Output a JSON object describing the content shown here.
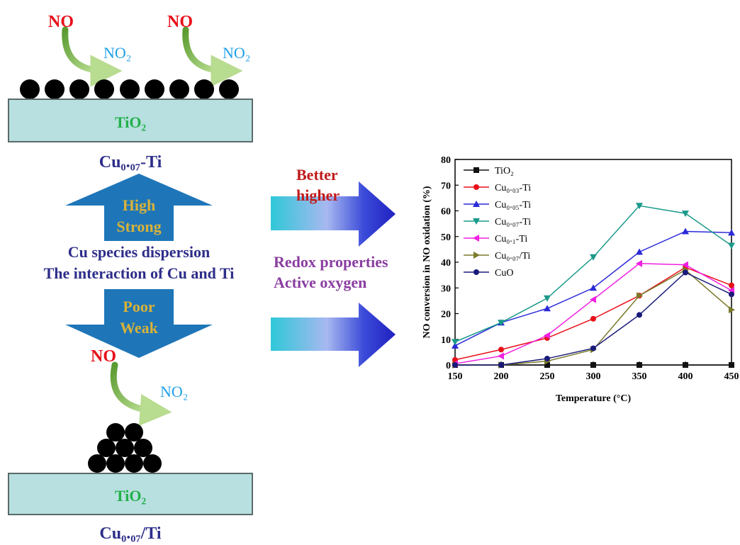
{
  "colors": {
    "no": "#e8101a",
    "no2": "#1fa0e8",
    "tio2_text": "#22b04a",
    "support_fill": "#b8e0e0",
    "support_stroke": "#5a6a6a",
    "arrow_blue": "#1e76b8",
    "arrow_text": "#d8b23a",
    "dark_text": "#2e2e8a",
    "purple_text": "#8a3ea0",
    "red_text": "#c01a1a",
    "curve_green": "#7ec03a"
  },
  "diagram": {
    "top": {
      "no_label_1": "NO",
      "no2_label_1": "NO₂",
      "no_label_2": "NO",
      "no2_label_2": "NO₂",
      "support_label": "TiO₂",
      "catalyst_label": "Cu₀.₀₇-Ti"
    },
    "up_arrow": {
      "line1": "High",
      "line2": "Strong"
    },
    "middle": {
      "line1": "Cu species dispersion",
      "line2": "The interaction of Cu and Ti"
    },
    "down_arrow": {
      "line1": "Poor",
      "line2": "Weak"
    },
    "bottom": {
      "no_label": "NO",
      "no2_label": "NO₂",
      "support_label": "TiO₂",
      "catalyst_label": "Cu₀.₀₇/Ti"
    },
    "right_arrows": {
      "upper_line1": "Better",
      "upper_line2": "higher",
      "mid_line1": "Redox properties",
      "mid_line2": "Active oxygen"
    }
  },
  "chart_data": {
    "type": "line",
    "xlabel": "Temperature (°C)",
    "ylabel": "NO conversion in NO oxidation (%)",
    "x": [
      150,
      200,
      250,
      300,
      350,
      400,
      450
    ],
    "xlim": [
      150,
      450
    ],
    "ylim": [
      0,
      80
    ],
    "xticks": [
      150,
      200,
      250,
      300,
      350,
      400,
      450
    ],
    "yticks": [
      0,
      10,
      20,
      30,
      40,
      50,
      60,
      70,
      80
    ],
    "legend_position": "top-left",
    "grid": false,
    "series": [
      {
        "name": "TiO₂",
        "color": "#111111",
        "marker": "square",
        "values": [
          0,
          0,
          0,
          0,
          0,
          0,
          0
        ]
      },
      {
        "name": "Cu₀.₀₃-Ti",
        "color": "#e8101a",
        "marker": "circle",
        "values": [
          2,
          6,
          10.5,
          18,
          27,
          38,
          31
        ]
      },
      {
        "name": "Cu₀.₀₅-Ti",
        "color": "#2a2ad8",
        "marker": "triangle-up",
        "values": [
          7.5,
          16.5,
          22,
          30,
          44,
          52,
          51.5
        ]
      },
      {
        "name": "Cu₀.₀₇-Ti",
        "color": "#1a9a8a",
        "marker": "triangle-down",
        "values": [
          9,
          16.5,
          26,
          42,
          62,
          59,
          46.5
        ]
      },
      {
        "name": "Cu₀.₁-Ti",
        "color": "#f020e0",
        "marker": "triangle-left",
        "values": [
          0.5,
          3.5,
          11.5,
          25.5,
          39.5,
          39,
          29
        ]
      },
      {
        "name": "Cu₀.₀₇/Ti",
        "color": "#7a7a2a",
        "marker": "triangle-right",
        "values": [
          0,
          0,
          1.5,
          6,
          27,
          37,
          21.5
        ]
      },
      {
        "name": "CuO",
        "color": "#1a1a7a",
        "marker": "circle",
        "values": [
          0,
          0,
          2.5,
          6.5,
          19.5,
          36,
          27.5
        ]
      }
    ]
  }
}
